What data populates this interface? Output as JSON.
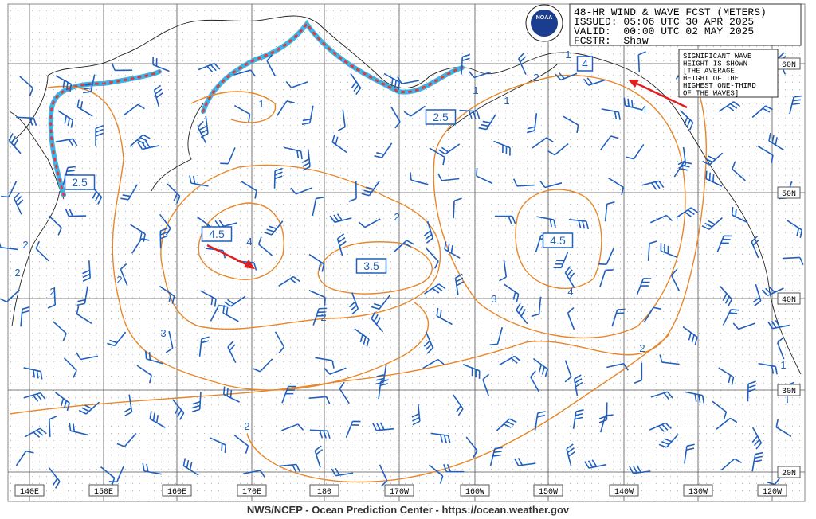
{
  "header": {
    "title": "48-HR WIND & WAVE FCST (METERS)",
    "issued": "ISSUED: 05:06 UTC 30 APR 2025",
    "valid": "VALID:  00:00 UTC 02 MAY 2025",
    "forecaster": "FCSTR:  Shaw"
  },
  "logo": "NOAA",
  "note": [
    "SIGNIFICANT WAVE",
    "HEIGHT IS SHOWN",
    "[THE AVERAGE",
    "HEIGHT OF THE",
    "HIGHEST ONE-THIRD",
    "OF THE WAVES]"
  ],
  "latitude_labels": [
    "60N",
    "50N",
    "40N",
    "30N",
    "20N"
  ],
  "longitude_labels": [
    "140E",
    "150E",
    "160E",
    "170E",
    "180",
    "170W",
    "160W",
    "150W",
    "140W",
    "130W",
    "120W"
  ],
  "contour_labels": [
    {
      "text": "2.5",
      "boxed": true
    },
    {
      "text": "2.5",
      "boxed": true
    },
    {
      "text": "4.5",
      "boxed": true
    },
    {
      "text": "3.5",
      "boxed": true
    },
    {
      "text": "4.5",
      "boxed": true
    },
    {
      "text": "4",
      "boxed": true
    },
    {
      "text": "1",
      "boxed": false
    },
    {
      "text": "1",
      "boxed": false
    },
    {
      "text": "1",
      "boxed": false
    },
    {
      "text": "1",
      "boxed": false
    },
    {
      "text": "2",
      "boxed": false
    },
    {
      "text": "4",
      "boxed": false
    },
    {
      "text": "2",
      "boxed": false
    },
    {
      "text": "4",
      "boxed": false
    },
    {
      "text": "2",
      "boxed": false
    },
    {
      "text": "2",
      "boxed": false
    },
    {
      "text": "2",
      "boxed": false
    },
    {
      "text": "2",
      "boxed": false
    },
    {
      "text": "3",
      "boxed": false
    },
    {
      "text": "4",
      "boxed": false
    },
    {
      "text": "2",
      "boxed": false
    },
    {
      "text": "3",
      "boxed": false
    },
    {
      "text": "2",
      "boxed": false
    },
    {
      "text": "1",
      "boxed": false
    },
    {
      "text": "2",
      "boxed": false
    }
  ],
  "footer": "NWS/NCEP - Ocean Prediction Center - https://ocean.weather.gov"
}
